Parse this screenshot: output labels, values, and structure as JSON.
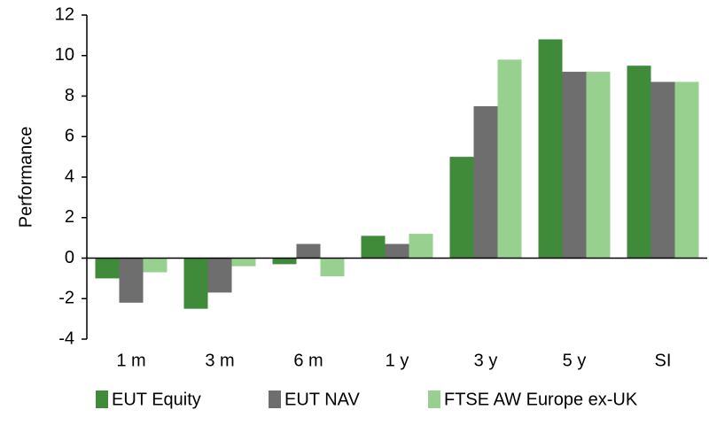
{
  "chart_data": {
    "type": "bar",
    "y_label": "Performance",
    "categories": [
      "1 m",
      "3 m",
      "6 m",
      "1 y",
      "3 y",
      "5 y",
      "SI"
    ],
    "series": [
      {
        "name": "EUT Equity",
        "color": "#3f8b3a",
        "values": [
          -1.0,
          -2.5,
          -0.3,
          1.1,
          5.0,
          10.8,
          9.5
        ]
      },
      {
        "name": "EUT NAV",
        "color": "#6e6e6e",
        "values": [
          -2.2,
          -1.7,
          0.7,
          0.7,
          7.5,
          9.2,
          8.7
        ]
      },
      {
        "name": "FTSE AW Europe ex-UK",
        "color": "#98d18f",
        "values": [
          -0.7,
          -0.4,
          -0.9,
          1.2,
          9.8,
          9.2,
          8.7
        ]
      }
    ],
    "ylim": [
      -4,
      12
    ],
    "yticks": [
      -4,
      -2,
      0,
      2,
      4,
      6,
      8,
      10,
      12
    ],
    "grid": false,
    "legend": "bottom"
  }
}
